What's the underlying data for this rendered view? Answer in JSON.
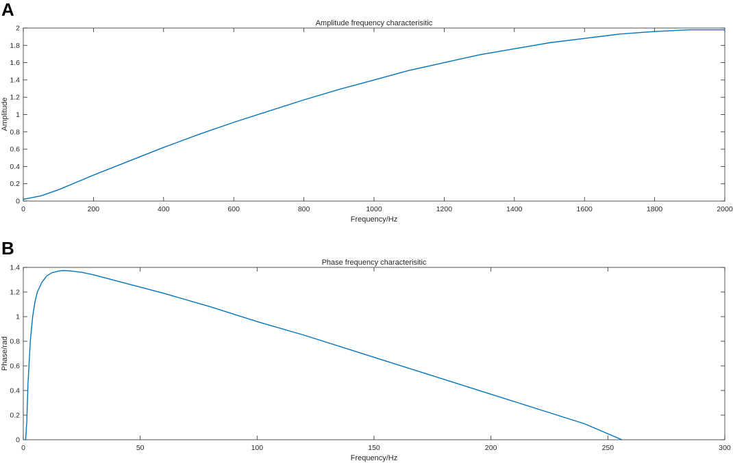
{
  "chart_data": [
    {
      "panel_label": "A",
      "type": "line",
      "title": "Amplitude frequency characterisitic",
      "xlabel": "Frequency/Hz",
      "ylabel": "Amplitude",
      "xlim": [
        0,
        2000
      ],
      "ylim": [
        0,
        2
      ],
      "xticks": [
        0,
        200,
        400,
        600,
        800,
        1000,
        1200,
        1400,
        1600,
        1800,
        2000
      ],
      "yticks": [
        0,
        0.2,
        0.4,
        0.6,
        0.8,
        1,
        1.2,
        1.4,
        1.6,
        1.8,
        2
      ],
      "grid": false,
      "series": [
        {
          "color": "#0072bd",
          "x": [
            0,
            50,
            100,
            200,
            300,
            400,
            500,
            600,
            700,
            800,
            900,
            1000,
            1100,
            1200,
            1300,
            1400,
            1500,
            1600,
            1700,
            1800,
            1900,
            2000
          ],
          "y": [
            0.02,
            0.06,
            0.13,
            0.3,
            0.46,
            0.62,
            0.77,
            0.91,
            1.04,
            1.17,
            1.29,
            1.4,
            1.51,
            1.6,
            1.69,
            1.76,
            1.83,
            1.88,
            1.93,
            1.96,
            1.98,
            1.98
          ]
        }
      ]
    },
    {
      "panel_label": "B",
      "type": "line",
      "title": "Phase frequency characterisitic",
      "xlabel": "Frequency/Hz",
      "ylabel": "Phase/rad",
      "xlim": [
        0,
        300
      ],
      "ylim": [
        0,
        1.4
      ],
      "xticks": [
        0,
        50,
        100,
        150,
        200,
        250,
        300
      ],
      "yticks": [
        0,
        0.2,
        0.4,
        0.6,
        0.8,
        1,
        1.2,
        1.4
      ],
      "grid": false,
      "series": [
        {
          "color": "#0072bd",
          "x": [
            1,
            1.5,
            2,
            3,
            4,
            5,
            6,
            8,
            10,
            12,
            15,
            17,
            20,
            25,
            30,
            40,
            50,
            60,
            80,
            100,
            120,
            150,
            180,
            200,
            220,
            240,
            256
          ],
          "y": [
            0,
            0.15,
            0.45,
            0.8,
            1.0,
            1.12,
            1.2,
            1.28,
            1.33,
            1.355,
            1.37,
            1.375,
            1.372,
            1.36,
            1.34,
            1.29,
            1.24,
            1.19,
            1.08,
            0.96,
            0.85,
            0.67,
            0.49,
            0.37,
            0.25,
            0.13,
            0.0
          ]
        }
      ]
    }
  ]
}
